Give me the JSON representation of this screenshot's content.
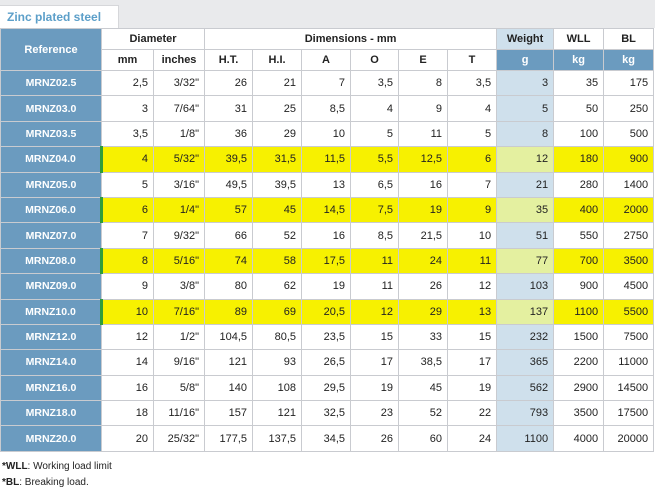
{
  "tab": {
    "label": "Zinc plated steel"
  },
  "header": {
    "reference": "Reference",
    "diameter": "Diameter",
    "dimensions": "Dimensions - mm",
    "weight": "Weight",
    "wll": "WLL",
    "bl": "BL",
    "sub": [
      "mm",
      "inches",
      "H.T.",
      "H.I.",
      "A",
      "O",
      "E",
      "T",
      "g",
      "kg",
      "kg"
    ]
  },
  "rows": [
    {
      "ref": "MRNZ02.5",
      "cells": [
        "2,5",
        "3/32\"",
        "26",
        "21",
        "7",
        "3,5",
        "8",
        "3,5",
        "3",
        "35",
        "175"
      ],
      "highlight": false
    },
    {
      "ref": "MRNZ03.0",
      "cells": [
        "3",
        "7/64\"",
        "31",
        "25",
        "8,5",
        "4",
        "9",
        "4",
        "5",
        "50",
        "250"
      ],
      "highlight": false
    },
    {
      "ref": "MRNZ03.5",
      "cells": [
        "3,5",
        "1/8\"",
        "36",
        "29",
        "10",
        "5",
        "11",
        "5",
        "8",
        "100",
        "500"
      ],
      "highlight": false
    },
    {
      "ref": "MRNZ04.0",
      "cells": [
        "4",
        "5/32\"",
        "39,5",
        "31,5",
        "11,5",
        "5,5",
        "12,5",
        "6",
        "12",
        "180",
        "900"
      ],
      "highlight": true
    },
    {
      "ref": "MRNZ05.0",
      "cells": [
        "5",
        "3/16\"",
        "49,5",
        "39,5",
        "13",
        "6,5",
        "16",
        "7",
        "21",
        "280",
        "1400"
      ],
      "highlight": false
    },
    {
      "ref": "MRNZ06.0",
      "cells": [
        "6",
        "1/4\"",
        "57",
        "45",
        "14,5",
        "7,5",
        "19",
        "9",
        "35",
        "400",
        "2000"
      ],
      "highlight": true
    },
    {
      "ref": "MRNZ07.0",
      "cells": [
        "7",
        "9/32\"",
        "66",
        "52",
        "16",
        "8,5",
        "21,5",
        "10",
        "51",
        "550",
        "2750"
      ],
      "highlight": false
    },
    {
      "ref": "MRNZ08.0",
      "cells": [
        "8",
        "5/16\"",
        "74",
        "58",
        "17,5",
        "11",
        "24",
        "11",
        "77",
        "700",
        "3500"
      ],
      "highlight": true
    },
    {
      "ref": "MRNZ09.0",
      "cells": [
        "9",
        "3/8\"",
        "80",
        "62",
        "19",
        "11",
        "26",
        "12",
        "103",
        "900",
        "4500"
      ],
      "highlight": false
    },
    {
      "ref": "MRNZ10.0",
      "cells": [
        "10",
        "7/16\"",
        "89",
        "69",
        "20,5",
        "12",
        "29",
        "13",
        "137",
        "1100",
        "5500"
      ],
      "highlight": true
    },
    {
      "ref": "MRNZ12.0",
      "cells": [
        "12",
        "1/2\"",
        "104,5",
        "80,5",
        "23,5",
        "15",
        "33",
        "15",
        "232",
        "1500",
        "7500"
      ],
      "highlight": false
    },
    {
      "ref": "MRNZ14.0",
      "cells": [
        "14",
        "9/16\"",
        "121",
        "93",
        "26,5",
        "17",
        "38,5",
        "17",
        "365",
        "2200",
        "11000"
      ],
      "highlight": false
    },
    {
      "ref": "MRNZ16.0",
      "cells": [
        "16",
        "5/8\"",
        "140",
        "108",
        "29,5",
        "19",
        "45",
        "19",
        "562",
        "2900",
        "14500"
      ],
      "highlight": false
    },
    {
      "ref": "MRNZ18.0",
      "cells": [
        "18",
        "11/16\"",
        "157",
        "121",
        "32,5",
        "23",
        "52",
        "22",
        "793",
        "3500",
        "17500"
      ],
      "highlight": false
    },
    {
      "ref": "MRNZ20.0",
      "cells": [
        "20",
        "25/32\"",
        "177,5",
        "137,5",
        "34,5",
        "26",
        "60",
        "24",
        "1100",
        "4000",
        "20000"
      ],
      "highlight": false
    }
  ],
  "notes": {
    "wll_key": "*WLL",
    "wll_text": ": Working load limit",
    "bl_key": "*BL",
    "bl_text": ": Breaking load."
  },
  "colors": {
    "reference_column": "#6b9bbf",
    "weight_column": "#cfe0ec",
    "highlight_row": "#f7f100",
    "tab_text": "#5c9fc9"
  }
}
